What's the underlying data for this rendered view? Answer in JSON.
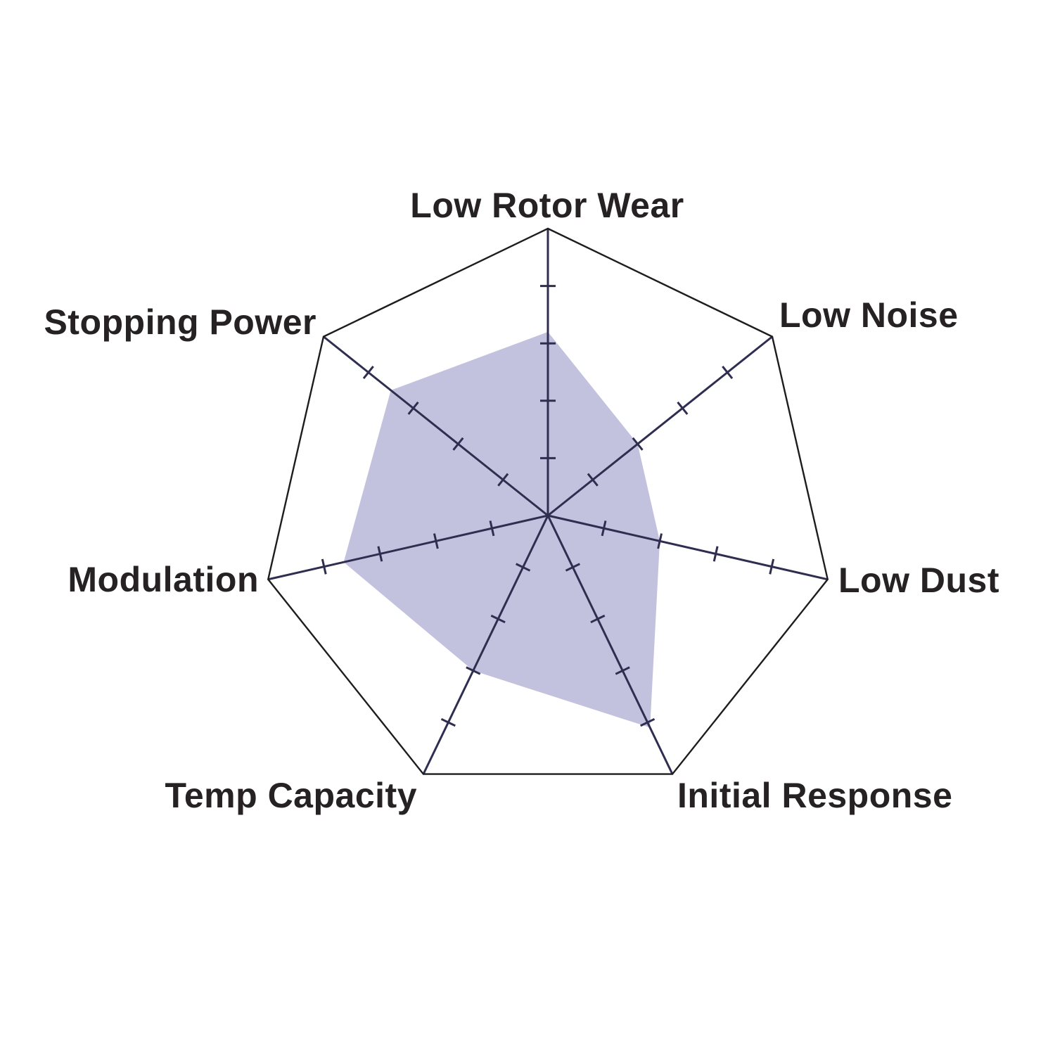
{
  "chart_data": {
    "type": "radar",
    "title": "",
    "categories": [
      "Low Rotor Wear",
      "Low Noise",
      "Low Dust",
      "Initial Response",
      "Temp Capacity",
      "Modulation",
      "Stopping Power"
    ],
    "values": [
      3.2,
      2,
      2,
      4.1,
      3,
      3.65,
      3.5
    ],
    "scale": {
      "min": 0,
      "max": 5,
      "tick_interval": 1,
      "ticks_shown": [
        1,
        2,
        3,
        4
      ]
    },
    "axis_count": 7,
    "start_angle_deg": 90,
    "direction": "clockwise",
    "legend": "none",
    "grid": "spokes-with-ticks-and-outer-ring",
    "colors": {
      "fill": "#c3c2de",
      "spoke": "#2f2e50",
      "tick": "#2f2e50",
      "outer_ring": "#1d1d1f",
      "label": "#262223",
      "background": "#ffffff"
    }
  }
}
